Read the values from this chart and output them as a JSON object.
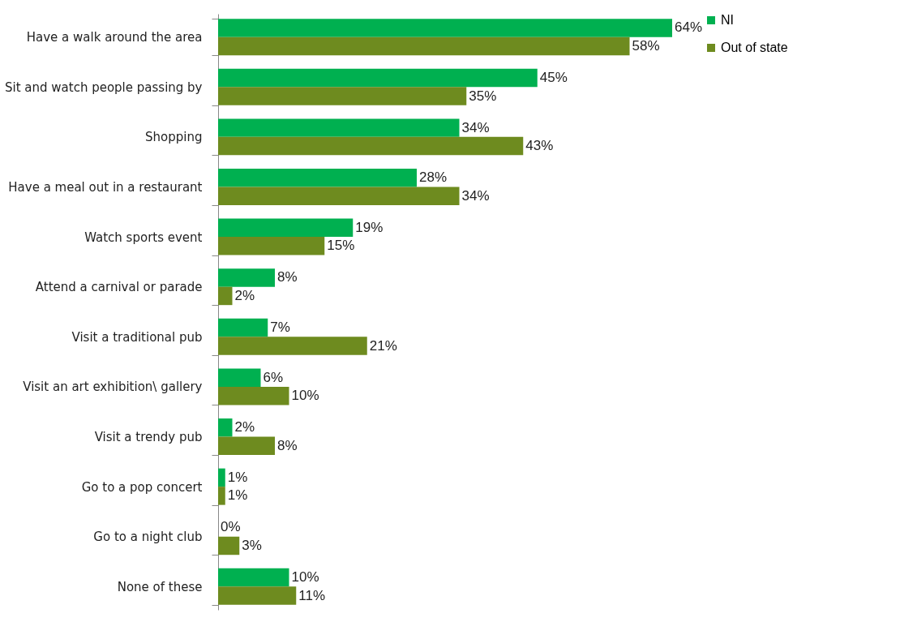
{
  "chart_data": {
    "type": "bar",
    "orientation": "horizontal",
    "tick_labels": "y",
    "legend": "right",
    "categories": [
      "Have a walk around the area",
      "Sit and watch people passing by",
      "Shopping",
      "Have a meal out in a restaurant",
      "Watch sports event",
      "Attend a carnival or parade",
      "Visit a traditional pub",
      "Visit an art exhibition\\ gallery",
      "Visit a trendy pub",
      "Go to a pop concert",
      "Go to a night club",
      "None of these"
    ],
    "series": [
      {
        "name": "NI",
        "color": "#00b050",
        "values": [
          64,
          45,
          34,
          28,
          19,
          8,
          7,
          6,
          2,
          1,
          0,
          10
        ],
        "value_labels": [
          "64%",
          "45%",
          "34%",
          "28%",
          "19%",
          "8%",
          "7%",
          "6%",
          "2%",
          "1%",
          "0%",
          "10%"
        ]
      },
      {
        "name": "Out of state",
        "color": "#6e8b1f",
        "values": [
          58,
          35,
          43,
          34,
          15,
          2,
          21,
          10,
          8,
          1,
          3,
          11
        ],
        "value_labels": [
          "58%",
          "35%",
          "43%",
          "34%",
          "15%",
          "2%",
          "21%",
          "10%",
          "8%",
          "1%",
          "3%",
          "11%"
        ]
      }
    ]
  }
}
